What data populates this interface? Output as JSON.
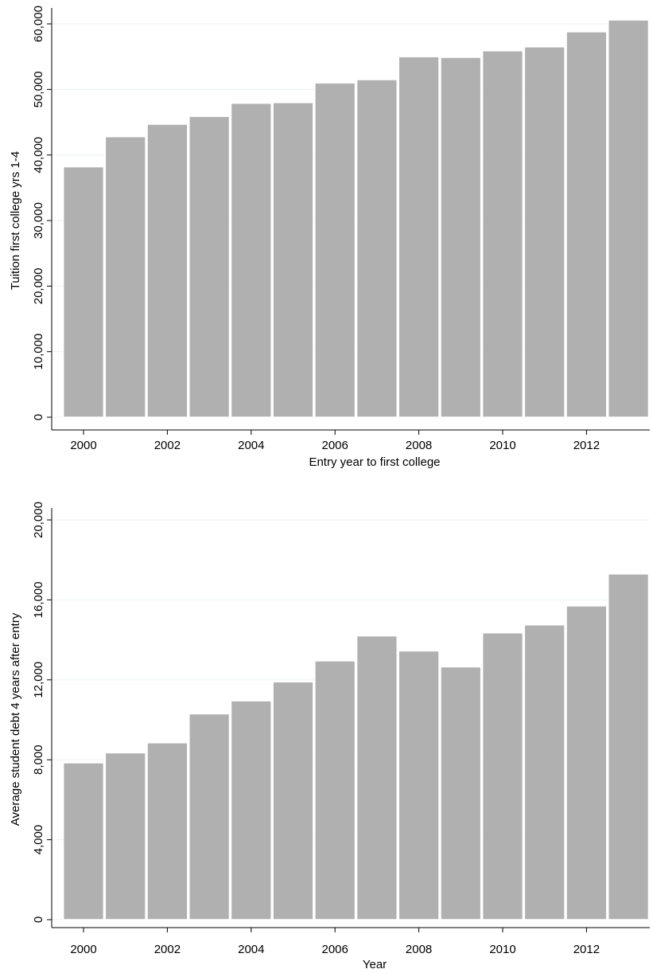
{
  "chart_data": [
    {
      "type": "bar",
      "title": "",
      "xlabel": "Entry year to first college",
      "ylabel": "Tuition first college yrs 1-4",
      "x": [
        2000,
        2001,
        2002,
        2003,
        2004,
        2005,
        2006,
        2007,
        2008,
        2009,
        2010,
        2011,
        2012,
        2013
      ],
      "values": [
        38200,
        42800,
        44700,
        45900,
        47900,
        48000,
        51000,
        51500,
        55000,
        54900,
        55900,
        56500,
        58800,
        60600
      ],
      "xlim": [
        1999.5,
        2013.5
      ],
      "ylim": [
        0,
        60000
      ],
      "xticks": [
        "2000",
        "2002",
        "2004",
        "2006",
        "2008",
        "2010",
        "2012"
      ],
      "yticks": [
        "0",
        "10,000",
        "20,000",
        "30,000",
        "40,000",
        "50,000",
        "60,000"
      ],
      "grid": true,
      "legend": "none",
      "bar_color": "#b0b0b0",
      "grid_color": "#eaf2f3"
    },
    {
      "type": "bar",
      "title": "",
      "xlabel": "Year",
      "ylabel": "Average student debt 4 years after entry",
      "x": [
        2000,
        2001,
        2002,
        2003,
        2004,
        2005,
        2006,
        2007,
        2008,
        2009,
        2010,
        2011,
        2012,
        2013
      ],
      "values": [
        7850,
        8350,
        8850,
        10300,
        10950,
        11900,
        12950,
        14200,
        13450,
        12650,
        14350,
        14750,
        15700,
        17300
      ],
      "xlim": [
        1999.5,
        2013.5
      ],
      "ylim": [
        0,
        20000
      ],
      "xticks": [
        "2000",
        "2002",
        "2004",
        "2006",
        "2008",
        "2010",
        "2012"
      ],
      "yticks": [
        "0",
        "4,000",
        "8,000",
        "12,000",
        "16,000",
        "20,000"
      ],
      "grid": true,
      "legend": "none",
      "bar_color": "#b0b0b0",
      "grid_color": "#eaf2f3"
    }
  ]
}
